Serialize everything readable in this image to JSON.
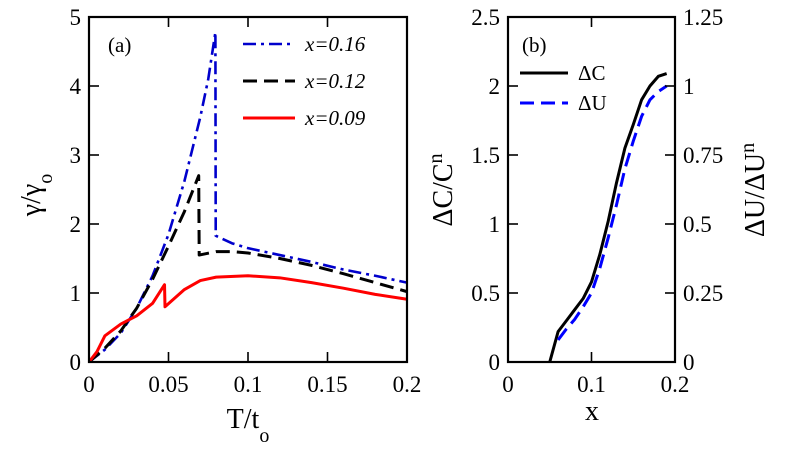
{
  "chart_data": [
    {
      "id": "a",
      "type": "line",
      "panel_label": "(a)",
      "xlabel_main": "T/t",
      "xlabel_sub": "o",
      "ylabel_main": "γ/γ",
      "ylabel_sub": "o",
      "xlim": [
        0,
        0.2
      ],
      "ylim": [
        0,
        5
      ],
      "xticks": [
        0,
        0.05,
        0.1,
        0.15,
        0.2
      ],
      "xtick_labels": [
        "0",
        "0.05",
        "0.1",
        "0.15",
        "0.2"
      ],
      "yticks": [
        0,
        1,
        2,
        3,
        4,
        5
      ],
      "ytick_labels": [
        "0",
        "1",
        "2",
        "3",
        "4",
        "5"
      ],
      "legend_position": "top-right",
      "series": [
        {
          "name": "x=0.16",
          "color": "#0000cc",
          "dash": "dashdot",
          "points": [
            [
              0,
              0
            ],
            [
              0.01,
              0.18
            ],
            [
              0.02,
              0.42
            ],
            [
              0.03,
              0.78
            ],
            [
              0.04,
              1.25
            ],
            [
              0.05,
              1.85
            ],
            [
              0.06,
              2.62
            ],
            [
              0.07,
              3.55
            ],
            [
              0.075,
              4.1
            ],
            [
              0.0795,
              4.78
            ],
            [
              0.0797,
              1.83
            ],
            [
              0.09,
              1.72
            ],
            [
              0.1,
              1.65
            ],
            [
              0.12,
              1.55
            ],
            [
              0.14,
              1.45
            ],
            [
              0.16,
              1.34
            ],
            [
              0.18,
              1.25
            ],
            [
              0.2,
              1.15
            ]
          ]
        },
        {
          "name": "x=0.12",
          "color": "#000000",
          "dash": "dashed",
          "points": [
            [
              0,
              0
            ],
            [
              0.01,
              0.2
            ],
            [
              0.02,
              0.45
            ],
            [
              0.03,
              0.78
            ],
            [
              0.04,
              1.2
            ],
            [
              0.05,
              1.68
            ],
            [
              0.06,
              2.18
            ],
            [
              0.069,
              2.7
            ],
            [
              0.0693,
              1.55
            ],
            [
              0.08,
              1.6
            ],
            [
              0.09,
              1.6
            ],
            [
              0.1,
              1.58
            ],
            [
              0.12,
              1.5
            ],
            [
              0.14,
              1.4
            ],
            [
              0.16,
              1.28
            ],
            [
              0.18,
              1.15
            ],
            [
              0.2,
              1.02
            ]
          ]
        },
        {
          "name": "x=0.09",
          "color": "#ff0000",
          "dash": "solid",
          "points": [
            [
              0,
              0
            ],
            [
              0.005,
              0.15
            ],
            [
              0.01,
              0.38
            ],
            [
              0.02,
              0.55
            ],
            [
              0.03,
              0.67
            ],
            [
              0.04,
              0.85
            ],
            [
              0.0475,
              1.12
            ],
            [
              0.0478,
              0.8
            ],
            [
              0.06,
              1.05
            ],
            [
              0.07,
              1.18
            ],
            [
              0.08,
              1.23
            ],
            [
              0.1,
              1.25
            ],
            [
              0.12,
              1.22
            ],
            [
              0.14,
              1.15
            ],
            [
              0.16,
              1.07
            ],
            [
              0.18,
              0.98
            ],
            [
              0.2,
              0.91
            ]
          ]
        }
      ]
    },
    {
      "id": "b",
      "type": "line",
      "panel_label": "(b)",
      "xlabel": "x",
      "ylabel_left_main": "ΔC/C",
      "ylabel_left_sub": "n",
      "ylabel_right_main": "ΔU/ΔU",
      "ylabel_right_sub": "n",
      "xlim": [
        0,
        0.2
      ],
      "ylim_left": [
        0,
        2.5
      ],
      "ylim_right": [
        0,
        1.25
      ],
      "xticks": [
        0,
        0.1,
        0.2
      ],
      "xtick_labels": [
        "0",
        "0.1",
        "0.2"
      ],
      "yticks_left": [
        0,
        0.5,
        1,
        1.5,
        2,
        2.5
      ],
      "ytick_labels_left": [
        "0",
        "0.5",
        "1",
        "1.5",
        "2",
        "2.5"
      ],
      "yticks_right": [
        0,
        0.25,
        0.5,
        0.75,
        1,
        1.25
      ],
      "ytick_labels_right": [
        "0",
        "0.25",
        "0.5",
        "0.75",
        "1",
        "1.25"
      ],
      "legend_position": "top-left",
      "series": [
        {
          "name": "ΔC",
          "axis": "left",
          "color": "#000000",
          "dash": "solid",
          "points": [
            [
              0.05,
              0
            ],
            [
              0.06,
              0.22
            ],
            [
              0.07,
              0.3
            ],
            [
              0.08,
              0.38
            ],
            [
              0.09,
              0.46
            ],
            [
              0.1,
              0.58
            ],
            [
              0.11,
              0.78
            ],
            [
              0.12,
              1.02
            ],
            [
              0.13,
              1.3
            ],
            [
              0.14,
              1.55
            ],
            [
              0.15,
              1.72
            ],
            [
              0.16,
              1.9
            ],
            [
              0.17,
              2.0
            ],
            [
              0.18,
              2.07
            ],
            [
              0.19,
              2.09
            ]
          ]
        },
        {
          "name": "ΔU",
          "axis": "right",
          "color": "#0000ff",
          "dash": "dashed",
          "points": [
            [
              0.06,
              0.08
            ],
            [
              0.07,
              0.12
            ],
            [
              0.08,
              0.155
            ],
            [
              0.09,
              0.2
            ],
            [
              0.1,
              0.25
            ],
            [
              0.11,
              0.34
            ],
            [
              0.12,
              0.45
            ],
            [
              0.13,
              0.57
            ],
            [
              0.14,
              0.7
            ],
            [
              0.15,
              0.8
            ],
            [
              0.16,
              0.89
            ],
            [
              0.17,
              0.95
            ],
            [
              0.18,
              0.98
            ],
            [
              0.19,
              1.0
            ]
          ]
        }
      ]
    }
  ]
}
